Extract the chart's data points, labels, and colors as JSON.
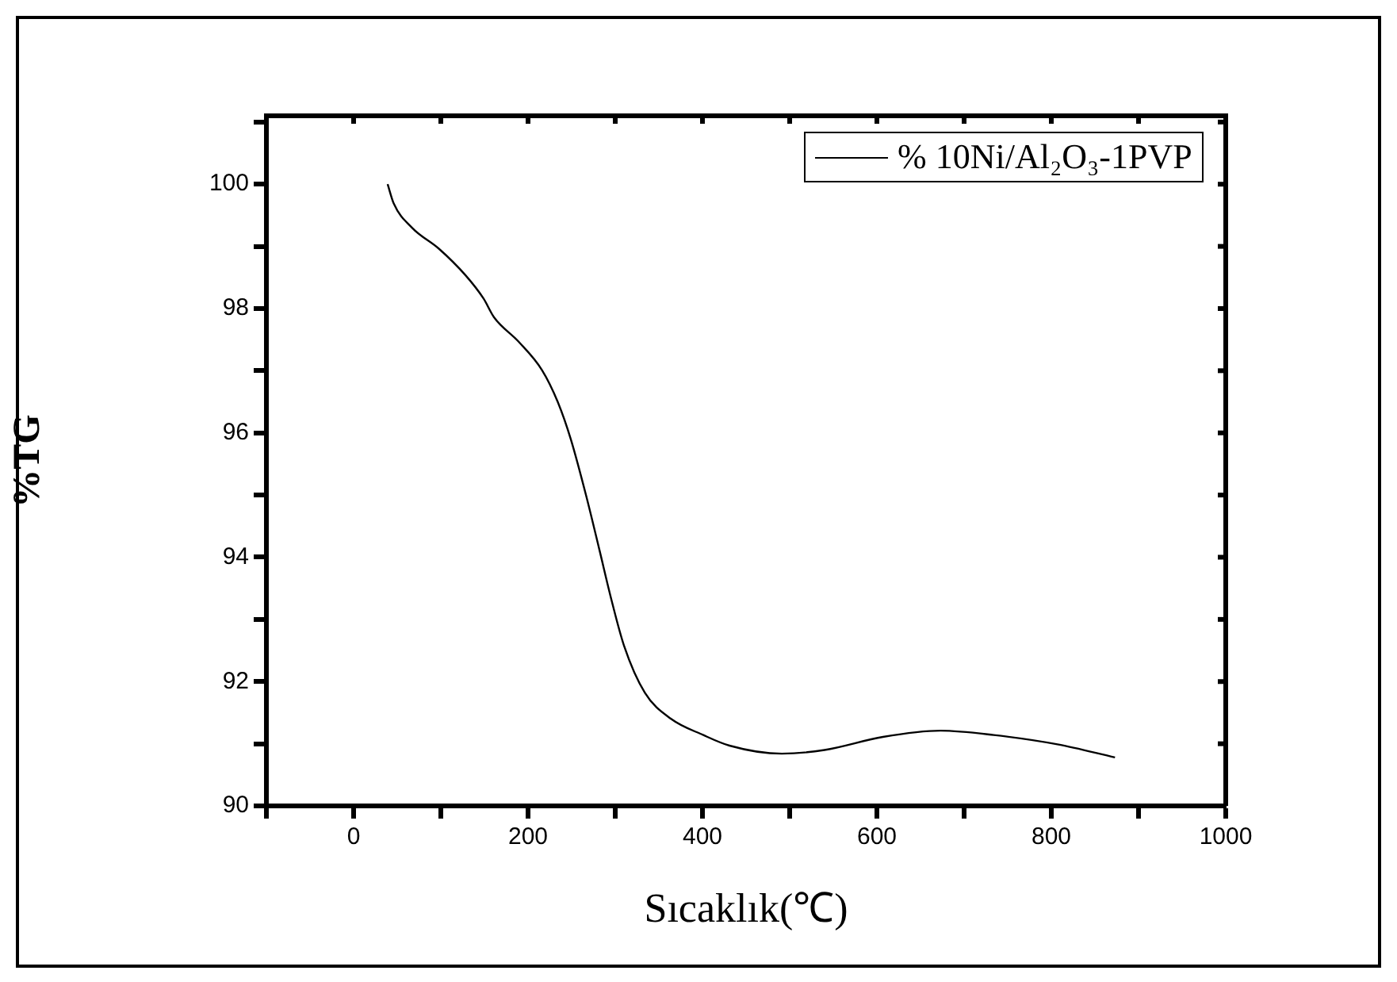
{
  "chart_data": {
    "type": "line",
    "xlabel": "Sıcaklık(℃)",
    "ylabel": "%TG",
    "xlim": [
      -100,
      1000
    ],
    "xticks": [
      {
        "value": -100,
        "label": null
      },
      0,
      {
        "value": 100,
        "label": null
      },
      200,
      {
        "value": 300,
        "label": null
      },
      400,
      {
        "value": 500,
        "label": null
      },
      600,
      {
        "value": 700,
        "label": null
      },
      800,
      {
        "value": 900,
        "label": null
      },
      1000
    ],
    "ylim": [
      90,
      101.1
    ],
    "yticks": [
      90,
      {
        "value": 91,
        "label": null
      },
      92,
      {
        "value": 93,
        "label": null
      },
      94,
      {
        "value": 95,
        "label": null
      },
      96,
      {
        "value": 97,
        "label": null
      },
      98,
      {
        "value": 99,
        "label": null
      },
      100,
      {
        "value": 101,
        "label": null
      }
    ],
    "legend": "top right",
    "grid": false,
    "marker": "none",
    "line_style": "solid",
    "series": [
      {
        "name": "% 10Ni/Al₂O₃-1PVP",
        "color": "#000000",
        "x": [
          39,
          46,
          67,
          98,
          128,
          149,
          161,
          189,
          216,
          234,
          249,
          267,
          282,
          295,
          310,
          334,
          364,
          401,
          431,
          491,
          540,
          607,
          673,
          734,
          807,
          873
        ],
        "values": [
          100.0,
          99.69,
          99.3,
          98.96,
          98.54,
          98.16,
          97.86,
          97.47,
          97.01,
          96.5,
          95.9,
          94.97,
          94.11,
          93.35,
          92.58,
          91.82,
          91.4,
          91.14,
          90.97,
          90.84,
          90.9,
          91.11,
          91.21,
          91.14,
          90.99,
          90.78
        ]
      }
    ]
  }
}
